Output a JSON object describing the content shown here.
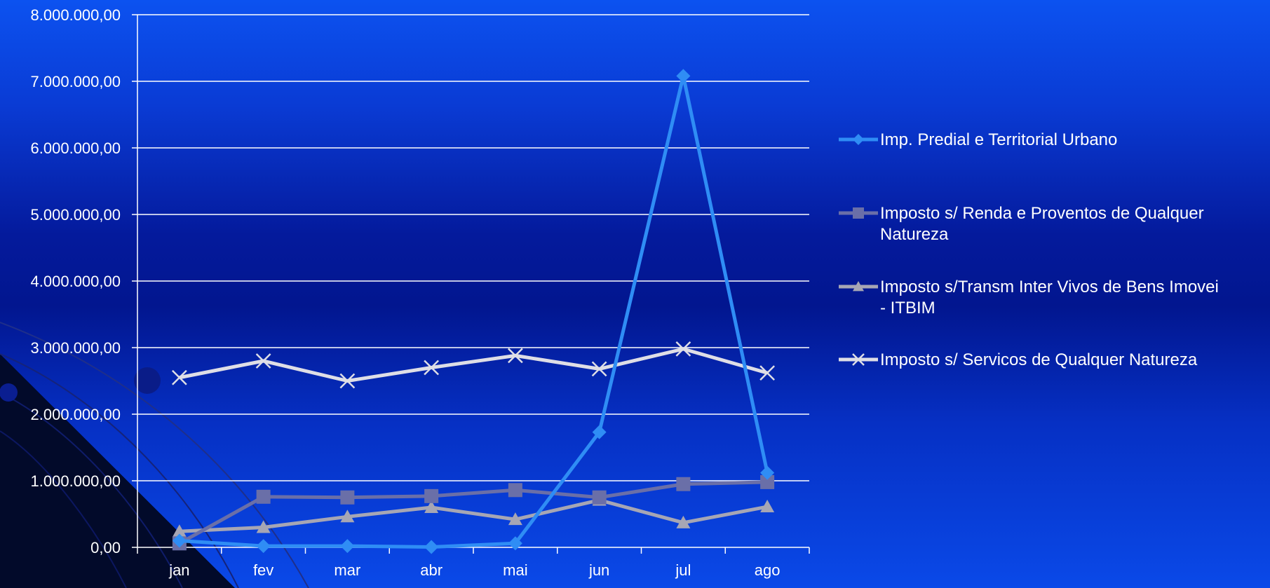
{
  "chart_data": {
    "type": "line",
    "categories": [
      "jan",
      "fev",
      "mar",
      "abr",
      "mai",
      "jun",
      "jul",
      "ago"
    ],
    "ylim": [
      0,
      8000000
    ],
    "yticks": [
      0,
      1000000,
      2000000,
      3000000,
      4000000,
      5000000,
      6000000,
      7000000,
      8000000
    ],
    "ytick_labels": [
      "0,00",
      "1.000.000,00",
      "2.000.000,00",
      "3.000.000,00",
      "4.000.000,00",
      "5.000.000,00",
      "6.000.000,00",
      "7.000.000,00",
      "8.000.000,00"
    ],
    "grid": true,
    "legend_position": "right",
    "series": [
      {
        "name": "Imp. Predial e Territorial Urbano",
        "name_lines": [
          "Imp. Predial e Territorial Urbano"
        ],
        "color": "#2f8df5",
        "marker": "diamond",
        "values": [
          100000,
          20000,
          20000,
          5000,
          60000,
          1730000,
          7080000,
          1120000
        ]
      },
      {
        "name": "Imposto s/ Renda e Proventos de Qualquer Natureza",
        "name_lines": [
          "Imposto s/ Renda e Proventos de Qualquer",
          "Natureza"
        ],
        "color": "#6a6fa8",
        "marker": "square",
        "values": [
          60000,
          760000,
          750000,
          770000,
          860000,
          750000,
          950000,
          980000
        ]
      },
      {
        "name": "Imposto s/Transm Inter Vivos de Bens Imovei - ITBIM",
        "name_lines": [
          "Imposto s/Transm Inter Vivos de Bens Imovei",
          "- ITBIM"
        ],
        "color": "#a6a6b4",
        "marker": "triangle",
        "values": [
          240000,
          300000,
          460000,
          600000,
          420000,
          710000,
          370000,
          610000
        ]
      },
      {
        "name": "Imposto s/ Servicos de Qualquer Natureza",
        "name_lines": [
          "Imposto s/ Servicos de Qualquer Natureza"
        ],
        "color": "#dedee6",
        "marker": "x",
        "values": [
          2550000,
          2800000,
          2500000,
          2700000,
          2880000,
          2680000,
          2980000,
          2620000
        ]
      }
    ]
  }
}
